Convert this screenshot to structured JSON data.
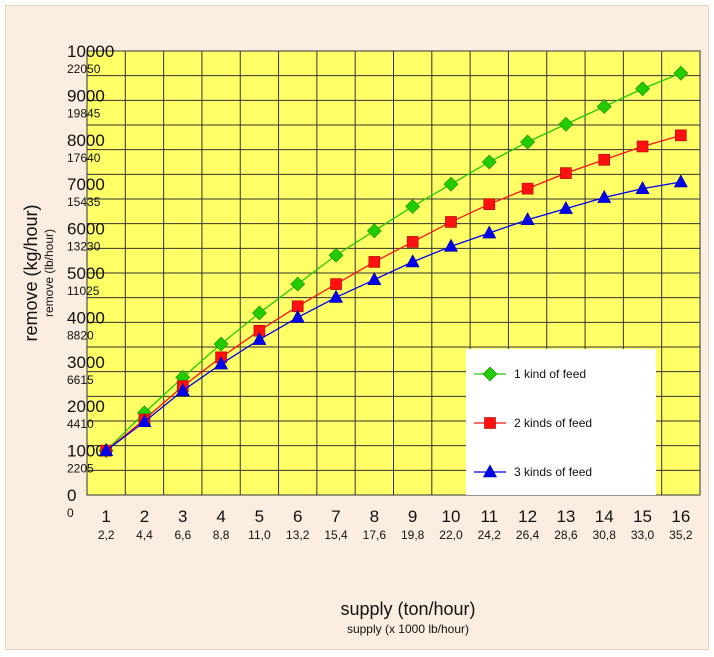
{
  "colors": {
    "plot_bg": "#ffff66",
    "frame_bg": "#fbeee0",
    "grid": "#333333",
    "series_1": "#22cc00",
    "series_2": "#ff1111",
    "series_3": "#0000ee"
  },
  "chart_data": {
    "type": "line",
    "title": "",
    "xlabel": "supply  (ton/hour)",
    "xlabel_secondary": "supply (x 1000 lb/hour)",
    "ylabel": "remove  (kg/hour)",
    "ylabel_secondary": "remove (lb/hour)",
    "x": [
      1,
      2,
      3,
      4,
      5,
      6,
      7,
      8,
      9,
      10,
      11,
      12,
      13,
      14,
      15,
      16
    ],
    "x_ticks_secondary": [
      "2,2",
      "4,4",
      "6,6",
      "8,8",
      "11,0",
      "13,2",
      "15,4",
      "17,6",
      "19,8",
      "22,0",
      "24,2",
      "26,4",
      "28,6",
      "30,8",
      "33,0",
      "35,2"
    ],
    "y_ticks": [
      "0",
      "1000",
      "2000",
      "3000",
      "4000",
      "5000",
      "6000",
      "7000",
      "8000",
      "9000",
      "10000"
    ],
    "y_ticks_secondary": [
      "0",
      "2205",
      "4410",
      "6615",
      "8820",
      "11025",
      "13230",
      "15435",
      "17640",
      "19845",
      "22050"
    ],
    "xlim": [
      1,
      16
    ],
    "ylim": [
      0,
      10000
    ],
    "grid": true,
    "legend_position": "center-right",
    "series": [
      {
        "name": "1 kind of feed",
        "marker": "diamond",
        "color": "#22cc00",
        "values": [
          1000,
          1850,
          2650,
          3400,
          4100,
          4750,
          5400,
          5950,
          6500,
          7000,
          7500,
          7950,
          8350,
          8750,
          9150,
          9500
        ]
      },
      {
        "name": "2 kinds of feed",
        "marker": "square",
        "color": "#ff1111",
        "values": [
          1000,
          1700,
          2450,
          3100,
          3700,
          4250,
          4750,
          5250,
          5700,
          6150,
          6550,
          6900,
          7250,
          7550,
          7850,
          8100
        ]
      },
      {
        "name": "3 kinds of feed",
        "marker": "triangle",
        "color": "#0000ee",
        "values": [
          1000,
          1650,
          2350,
          2950,
          3500,
          4000,
          4450,
          4850,
          5250,
          5600,
          5900,
          6200,
          6450,
          6700,
          6900,
          7050
        ]
      }
    ]
  }
}
